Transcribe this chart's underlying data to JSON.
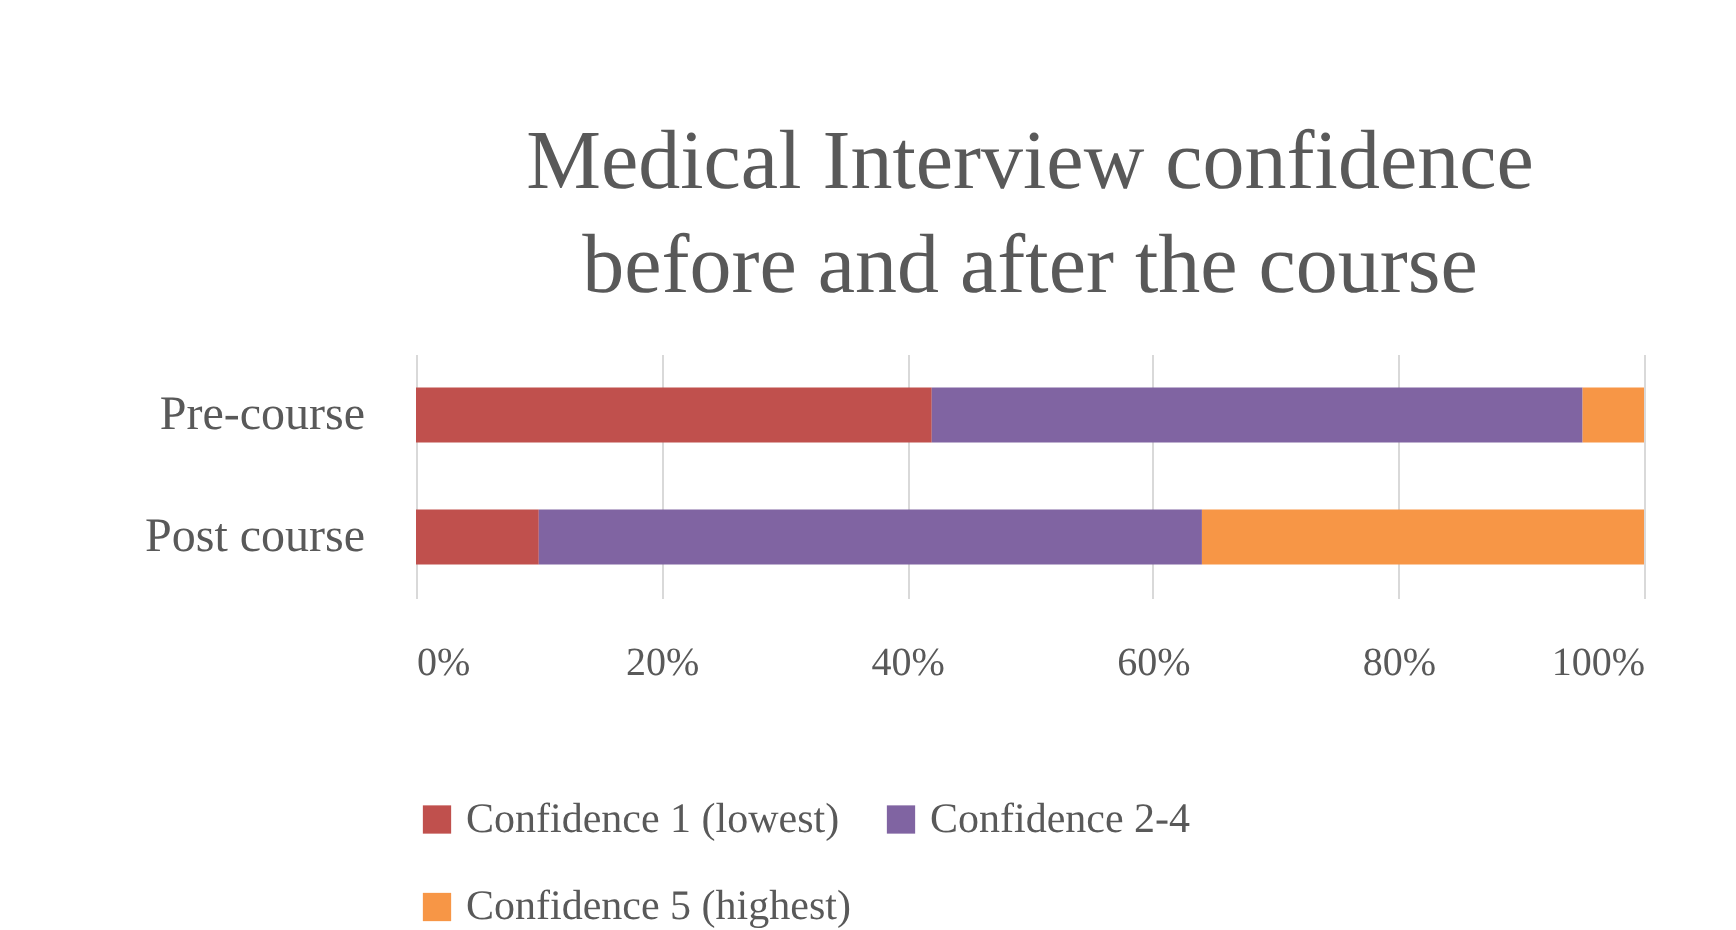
{
  "chart_data": {
    "type": "bar",
    "orientation": "horizontal",
    "stacked": true,
    "title": "Medical Interview confidence\nbefore and after the course",
    "categories": [
      "Pre-course",
      "Post course"
    ],
    "series": [
      {
        "name": "Confidence 1 (lowest)",
        "color": "#c0504d",
        "values": [
          42,
          10
        ]
      },
      {
        "name": "Confidence 2-4",
        "color": "#8064a2",
        "values": [
          53,
          54
        ]
      },
      {
        "name": "Confidence 5 (highest)",
        "color": "#f79646",
        "values": [
          5,
          36
        ]
      }
    ],
    "xlim": [
      0,
      100
    ],
    "xticks": [
      {
        "value": 0,
        "label": "0%"
      },
      {
        "value": 20,
        "label": "20%"
      },
      {
        "value": 40,
        "label": "40%"
      },
      {
        "value": 60,
        "label": "60%"
      },
      {
        "value": 80,
        "label": "80%"
      },
      {
        "value": 100,
        "label": "100%"
      }
    ],
    "grid": "x",
    "legend": "bottom"
  }
}
